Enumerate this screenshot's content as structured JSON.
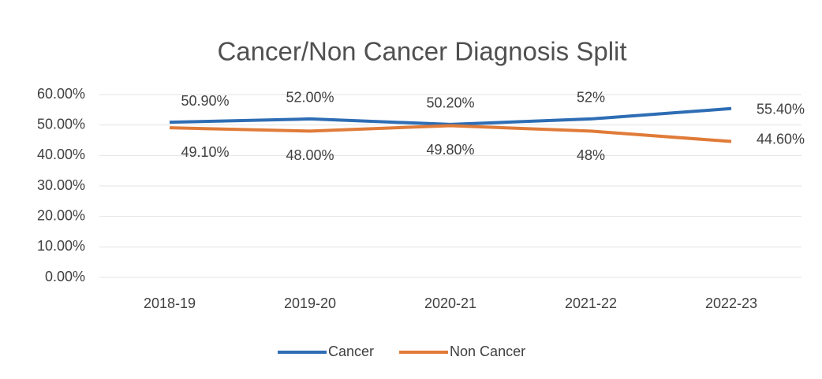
{
  "chart_data": {
    "type": "line",
    "title": "Cancer/Non Cancer Diagnosis Split",
    "categories": [
      "2018-19",
      "2019-20",
      "2020-21",
      "2021-22",
      "2022-23"
    ],
    "series": [
      {
        "name": "Cancer",
        "color": "#2e6db4",
        "values": [
          50.9,
          52.0,
          50.2,
          52,
          55.4
        ],
        "value_labels": [
          "50.90%",
          "52.00%",
          "50.20%",
          "52%",
          "55.40%"
        ]
      },
      {
        "name": "Non Cancer",
        "color": "#e07b39",
        "values": [
          49.1,
          48.0,
          49.8,
          48,
          44.6
        ],
        "value_labels": [
          "49.10%",
          "48.00%",
          "49.80%",
          "48%",
          "44.60%"
        ]
      }
    ],
    "ylim": [
      0,
      60
    ],
    "yticks": [
      {
        "value": 0,
        "label": "0.00%"
      },
      {
        "value": 10,
        "label": "10.00%"
      },
      {
        "value": 20,
        "label": "20.00%"
      },
      {
        "value": 30,
        "label": "30.00%"
      },
      {
        "value": 40,
        "label": "40.00%"
      },
      {
        "value": 50,
        "label": "50.00%"
      },
      {
        "value": 60,
        "label": "60.00%"
      }
    ],
    "grid": true,
    "legend": "bottom"
  }
}
